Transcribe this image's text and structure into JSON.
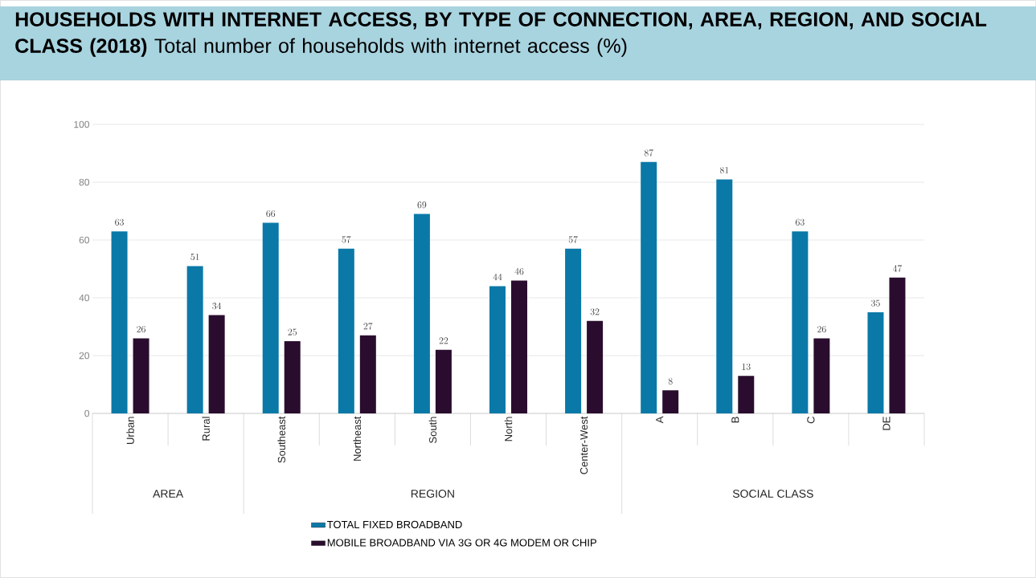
{
  "chart_data": {
    "type": "bar",
    "title": "HOUSEHOLDS WITH INTERNET ACCESS, BY TYPE OF CONNECTION, AREA, REGION, AND SOCIAL CLASS (2018)",
    "subtitle": "Total number of households with internet access (%)",
    "categories": [
      "Urban",
      "Rural",
      "Southeast",
      "Northeast",
      "South",
      "North",
      "Center-West",
      "A",
      "B",
      "C",
      "DE"
    ],
    "series": [
      {
        "name": "TOTAL FIXED BROADBAND",
        "color": "#0a79a8",
        "values": [
          63,
          51,
          66,
          57,
          69,
          44,
          57,
          87,
          81,
          63,
          35
        ]
      },
      {
        "name": "MOBILE BROADBAND VIA 3G OR 4G MODEM OR CHIP",
        "color": "#2a0d2e",
        "values": [
          26,
          34,
          25,
          27,
          22,
          46,
          32,
          8,
          13,
          26,
          47
        ]
      }
    ],
    "annotations": [
      "AREA",
      "REGION",
      "SOCIAL CLASS"
    ],
    "ylim": [
      0,
      100
    ],
    "yticks": [
      0,
      20,
      40,
      60,
      80,
      100
    ],
    "grid": "y",
    "legend": "bottom",
    "data_labels": true
  }
}
